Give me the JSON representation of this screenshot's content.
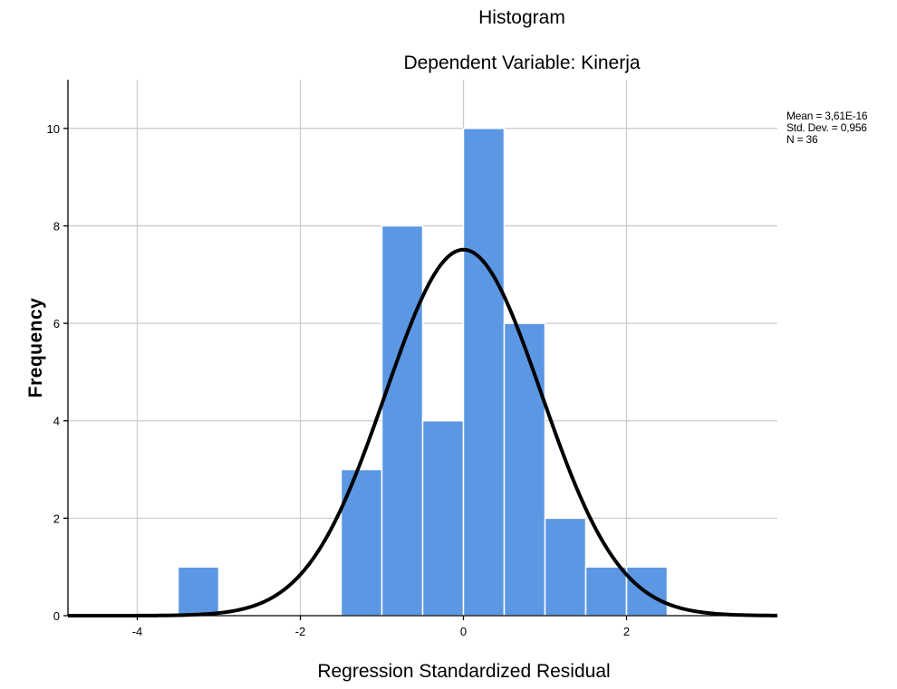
{
  "chart_data": {
    "type": "bar",
    "title": "Histogram",
    "subtitle": "Dependent Variable: Kinerja",
    "xlabel": "Regression Standardized Residual",
    "ylabel": "Frequency",
    "xlim": [
      -4.85,
      3.85
    ],
    "ylim": [
      0,
      11
    ],
    "x_ticks": [
      -4,
      -2,
      0,
      2
    ],
    "x_tick_labels": [
      "-4",
      "-2",
      "0",
      "2"
    ],
    "y_ticks": [
      0,
      2,
      4,
      6,
      8,
      10
    ],
    "y_tick_labels": [
      "0",
      "2",
      "4",
      "6",
      "8",
      "10"
    ],
    "bins": [
      {
        "from": -3.5,
        "to": -3.0,
        "count": 1
      },
      {
        "from": -1.5,
        "to": -1.0,
        "count": 3
      },
      {
        "from": -1.0,
        "to": -0.5,
        "count": 8
      },
      {
        "from": -0.5,
        "to": 0.0,
        "count": 4
      },
      {
        "from": 0.0,
        "to": 0.5,
        "count": 10
      },
      {
        "from": 0.5,
        "to": 1.0,
        "count": 6
      },
      {
        "from": 1.0,
        "to": 1.5,
        "count": 2
      },
      {
        "from": 1.5,
        "to": 2.0,
        "count": 1
      },
      {
        "from": 2.0,
        "to": 2.5,
        "count": 1
      }
    ],
    "normal_curve": {
      "mean": 0.0,
      "std_dev": 0.956,
      "n": 36,
      "bin_width": 0.5
    },
    "grid": true,
    "bar_color": "#5b97e3",
    "curve_color": "#000000",
    "stats_lines": [
      "Mean = 3,61E-16",
      "Std. Dev. = 0,956",
      "N = 36"
    ]
  }
}
